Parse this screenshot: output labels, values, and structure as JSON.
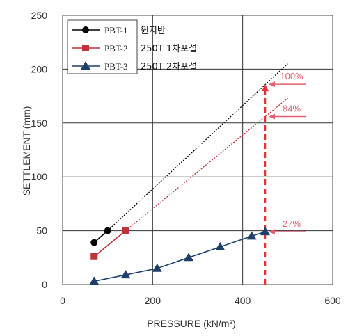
{
  "chart_data": {
    "type": "line",
    "title": "",
    "xlabel": "PRESSURE (kN/m²)",
    "ylabel": "SETTLEMENT (mm)",
    "xlim": [
      0,
      600
    ],
    "ylim": [
      0,
      250
    ],
    "x_ticks": [
      "0",
      "200",
      "400",
      "600"
    ],
    "y_ticks": [
      "0",
      "50",
      "100",
      "150",
      "200",
      "250"
    ],
    "grid": true,
    "legend_position": "top-left",
    "series": [
      {
        "name": "PBT-1",
        "description": "원지반",
        "color": "#000000",
        "marker": "circle",
        "points": [
          [
            70,
            39
          ],
          [
            100,
            50
          ]
        ],
        "extrapolation": [
          [
            100,
            50
          ],
          [
            500,
            205
          ]
        ]
      },
      {
        "name": "PBT-2",
        "description": "250T 1차포설",
        "color": "#c0313b",
        "marker": "square",
        "points": [
          [
            70,
            26
          ],
          [
            140,
            50
          ]
        ],
        "extrapolation": [
          [
            140,
            50
          ],
          [
            500,
            173
          ]
        ]
      },
      {
        "name": "PBT-3",
        "description": "250T 2차포설",
        "color": "#1f3f6b",
        "marker": "triangle",
        "points": [
          [
            70,
            3
          ],
          [
            140,
            9
          ],
          [
            210,
            15
          ],
          [
            280,
            25
          ],
          [
            350,
            35
          ],
          [
            420,
            45
          ],
          [
            450,
            49
          ]
        ],
        "extrapolation": []
      }
    ],
    "reference_line": {
      "x": 450,
      "y_from": 0,
      "y_to": 186,
      "color": "#e8303a",
      "style": "dashed"
    },
    "annotations": [
      {
        "text": "100%",
        "y": 186,
        "color": "#e06070"
      },
      {
        "text": "84%",
        "y": 156,
        "color": "#e06070"
      },
      {
        "text": "27%",
        "y": 49,
        "color": "#e06070"
      }
    ]
  }
}
